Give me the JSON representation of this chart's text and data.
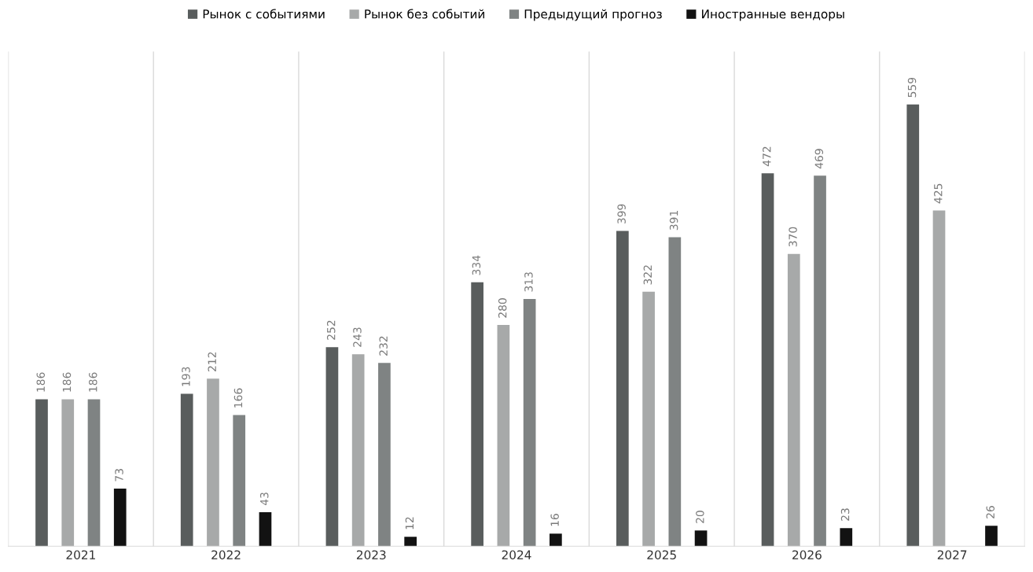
{
  "chart_data": {
    "type": "bar",
    "categories": [
      "2021",
      "2022",
      "2023",
      "2024",
      "2025",
      "2026",
      "2027"
    ],
    "series": [
      {
        "name": "Рынок с событиями",
        "color": "#595d5d",
        "values": [
          186,
          193,
          252,
          334,
          399,
          472,
          559
        ]
      },
      {
        "name": "Рынок без событий",
        "color": "#a7a9a9",
        "values": [
          186,
          212,
          243,
          280,
          322,
          370,
          425
        ]
      },
      {
        "name": "Предыдущий прогноз",
        "color": "#7f8383",
        "values": [
          186,
          166,
          232,
          313,
          391,
          469,
          null
        ]
      },
      {
        "name": "Иностранные вендоры",
        "color": "#121212",
        "values": [
          73,
          43,
          12,
          16,
          20,
          23,
          26
        ]
      }
    ],
    "data_labels": true,
    "grid": "x",
    "legend": "top"
  }
}
